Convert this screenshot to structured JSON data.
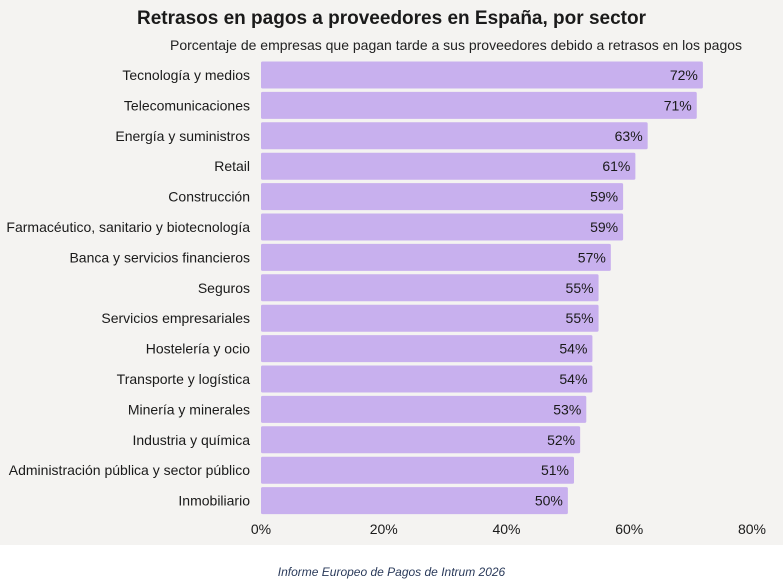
{
  "chart_data": {
    "type": "bar",
    "orientation": "horizontal",
    "title": "Retrasos en pagos a proveedores en España, por sector",
    "subtitle": "Porcentaje de empresas que pagan tarde a sus proveedores debido a retrasos en los pagos",
    "categories": [
      "Tecnología y medios",
      "Telecomunicaciones",
      "Energía y suministros",
      "Retail",
      "Construcción",
      "Farmacéutico, sanitario y biotecnología",
      "Banca y servicios financieros",
      "Seguros",
      "Servicios empresariales",
      "Hostelería y ocio",
      "Transporte y logística",
      "Minería y minerales",
      "Industria y química",
      "Administración pública y sector público",
      "Inmobiliario"
    ],
    "values": [
      72,
      71,
      63,
      61,
      59,
      59,
      57,
      55,
      55,
      54,
      54,
      53,
      52,
      51,
      50
    ],
    "data_labels": [
      "72%",
      "71%",
      "63%",
      "61%",
      "59%",
      "59%",
      "57%",
      "55%",
      "55%",
      "54%",
      "54%",
      "53%",
      "52%",
      "51%",
      "50%"
    ],
    "xlim": [
      0,
      80
    ],
    "x_ticks": [
      "0%",
      "20%",
      "40%",
      "60%",
      "80%"
    ],
    "grid": false,
    "bar_color": "#c8b0ee",
    "source": "Informe Europeo de Pagos de Intrum 2026"
  }
}
